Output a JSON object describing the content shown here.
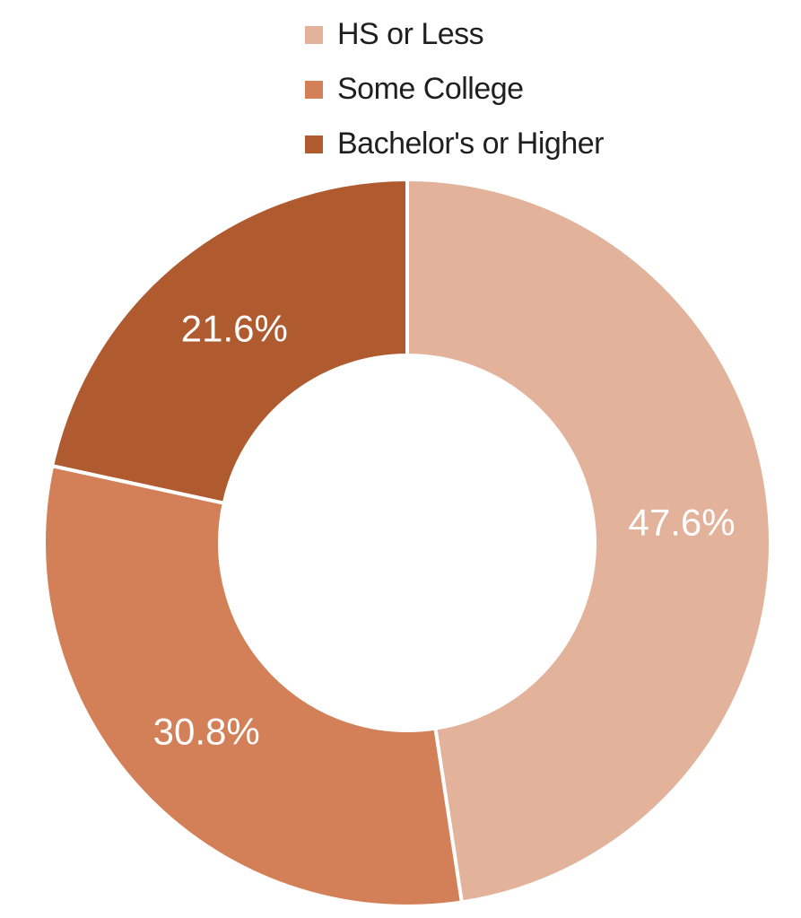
{
  "chart_data": {
    "type": "pie",
    "donut": true,
    "title": "",
    "legend_position": "top-center",
    "label_color": "#ffffff",
    "slices": [
      {
        "label": "HS or Less",
        "value": 47.6,
        "display": "47.6%",
        "color": "#E3B29A"
      },
      {
        "label": "Some College",
        "value": 30.8,
        "display": "30.8%",
        "color": "#D38058"
      },
      {
        "label": "Bachelor's or Higher",
        "value": 21.6,
        "display": "21.6%",
        "color": "#AF5A2F"
      }
    ]
  }
}
